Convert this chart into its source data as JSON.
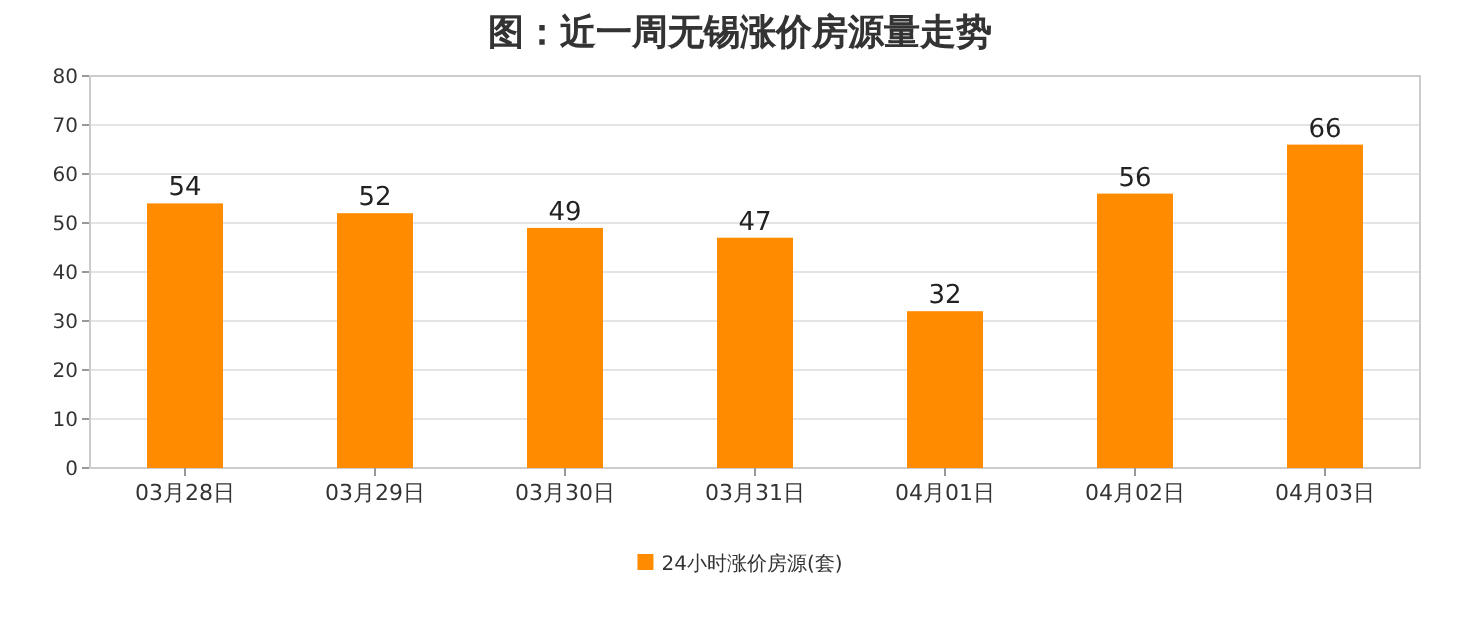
{
  "chart_data": {
    "type": "bar",
    "title": "图：近一周无锡涨价房源量走势",
    "categories": [
      "03月28日",
      "03月29日",
      "03月30日",
      "03月31日",
      "04月01日",
      "04月02日",
      "04月03日"
    ],
    "series": [
      {
        "name": "24小时涨价房源(套)",
        "color": "#ff8c00",
        "values": [
          54,
          52,
          49,
          47,
          32,
          56,
          66
        ]
      }
    ],
    "ylim": [
      0,
      80
    ],
    "yticks": [
      0,
      10,
      20,
      30,
      40,
      50,
      60,
      70,
      80
    ],
    "grid": "y",
    "legend": "bottom",
    "data_labels": true
  }
}
